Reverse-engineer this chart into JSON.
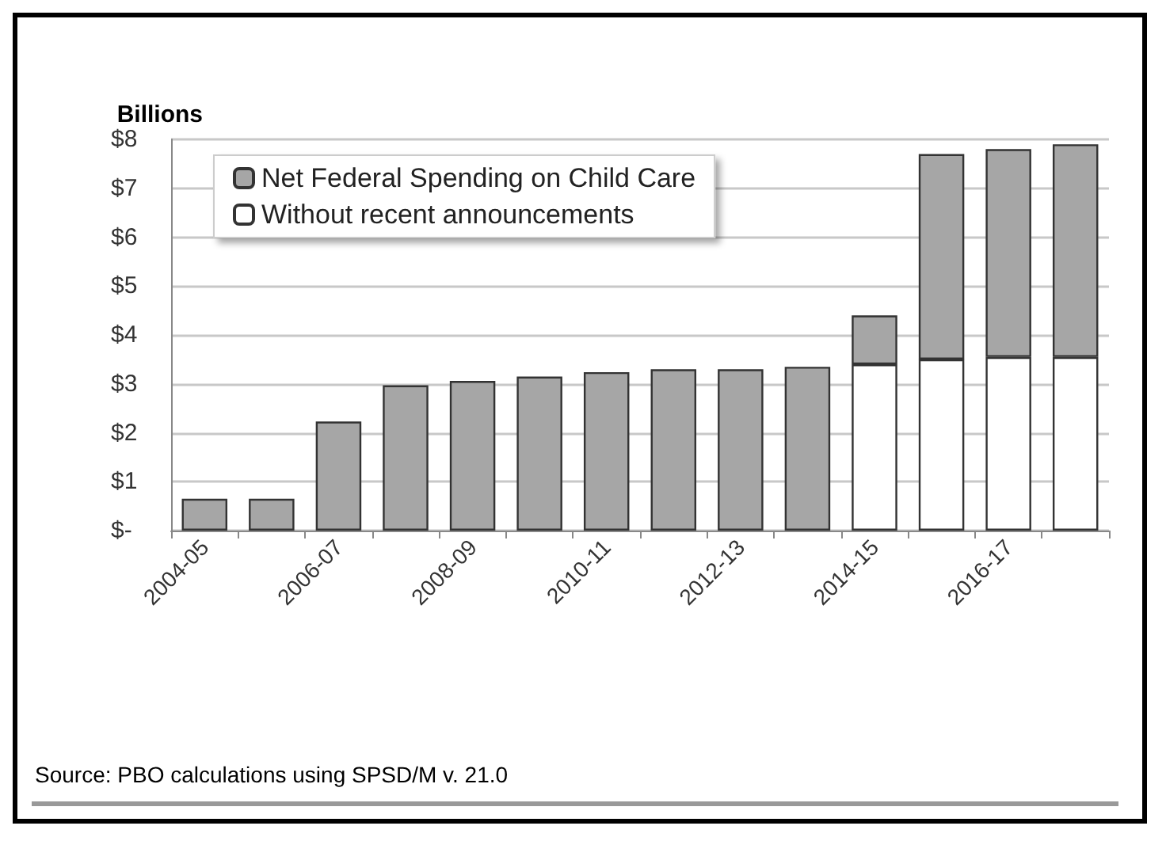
{
  "chart_data": {
    "type": "bar",
    "ylabel": "Billions",
    "stacked": true,
    "grid": "y",
    "legend": "top left",
    "categories": [
      "2004-05",
      null,
      "2006-07",
      null,
      "2008-09",
      null,
      "2010-11",
      null,
      "2012-13",
      null,
      "2014-15",
      null,
      "2016-17",
      null
    ],
    "series": [
      {
        "name": "Without recent announcements",
        "color": "#ffffff",
        "values": [
          null,
          null,
          null,
          null,
          null,
          null,
          null,
          null,
          null,
          null,
          3.4,
          3.5,
          3.55,
          3.55
        ]
      },
      {
        "name": "Net Federal Spending on Child Care",
        "color": "#a6a6a6",
        "values": [
          0.65,
          0.65,
          2.23,
          2.97,
          3.06,
          3.15,
          3.24,
          3.3,
          3.3,
          3.35,
          1.0,
          4.2,
          4.25,
          4.35
        ]
      }
    ],
    "ylim": [
      0,
      8
    ],
    "yticks": [
      {
        "value": 0,
        "label": "$-"
      },
      {
        "value": 1,
        "label": "$1"
      },
      {
        "value": 2,
        "label": "$2"
      },
      {
        "value": 3,
        "label": "$3"
      },
      {
        "value": 4,
        "label": "$4"
      },
      {
        "value": 5,
        "label": "$5"
      },
      {
        "value": 6,
        "label": "$6"
      },
      {
        "value": 7,
        "label": "$7"
      },
      {
        "value": 8,
        "label": "$8"
      }
    ],
    "annotations": [
      "Source: PBO calculations using SPSD/M v. 21.0"
    ]
  }
}
